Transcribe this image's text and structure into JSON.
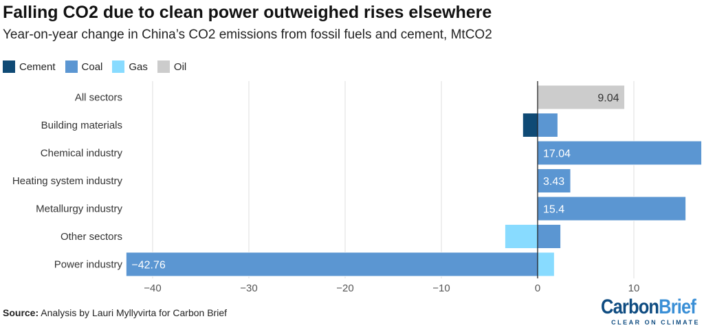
{
  "title": "Falling CO2 due to clean power outweighed rises elsewhere",
  "subtitle": "Year-on-year change in China’s CO2 emissions from fossil fuels and cement, MtCO2",
  "source_label": "Source:",
  "source_text": " Analysis by Lauri Myllyvirta for Carbon Brief",
  "logo": {
    "part1": "Carbon",
    "part2": "Brief",
    "tagline": "CLEAR ON CLIMATE"
  },
  "chart_data": {
    "type": "bar",
    "orientation": "horizontal",
    "stacked": true,
    "title": "Falling CO2 due to clean power outweighed rises elsewhere",
    "subtitle": "Year-on-year change in China’s CO2 emissions from fossil fuels and cement, MtCO2",
    "categories": [
      "All sectors",
      "Building materials",
      "Chemical industry",
      "Heating system industry",
      "Metallurgy industry",
      "Other sectors",
      "Power industry"
    ],
    "series": [
      {
        "name": "Cement",
        "color": "#0f4a75",
        "values": [
          0,
          -1.55,
          0,
          0,
          0,
          0,
          0
        ]
      },
      {
        "name": "Coal",
        "color": "#5b96d2",
        "values": [
          0,
          2.1,
          17.04,
          3.43,
          15.4,
          2.4,
          -42.76
        ]
      },
      {
        "name": "Gas",
        "color": "#88dbff",
        "values": [
          0,
          0,
          0,
          0,
          0,
          -3.4,
          1.74
        ]
      },
      {
        "name": "Oil",
        "color": "#cccccc",
        "values": [
          9.04,
          0,
          0,
          0,
          0,
          0,
          0
        ]
      }
    ],
    "data_labels": [
      {
        "category": "All sectors",
        "series": "Oil",
        "text": "9.04"
      },
      {
        "category": "Chemical industry",
        "series": "Coal",
        "text": "17.04"
      },
      {
        "category": "Heating system industry",
        "series": "Coal",
        "text": "3.43"
      },
      {
        "category": "Metallurgy industry",
        "series": "Coal",
        "text": "15.4"
      },
      {
        "category": "Power industry",
        "series": "Coal",
        "text": "−42.76"
      }
    ],
    "xlim": [
      -42.76,
      17.04
    ],
    "xticks": [
      -40,
      -30,
      -20,
      -10,
      0,
      10
    ],
    "xtick_labels": [
      "−40",
      "−30",
      "−20",
      "−10",
      "0",
      "10"
    ],
    "grid": true,
    "legend": "top-left"
  }
}
